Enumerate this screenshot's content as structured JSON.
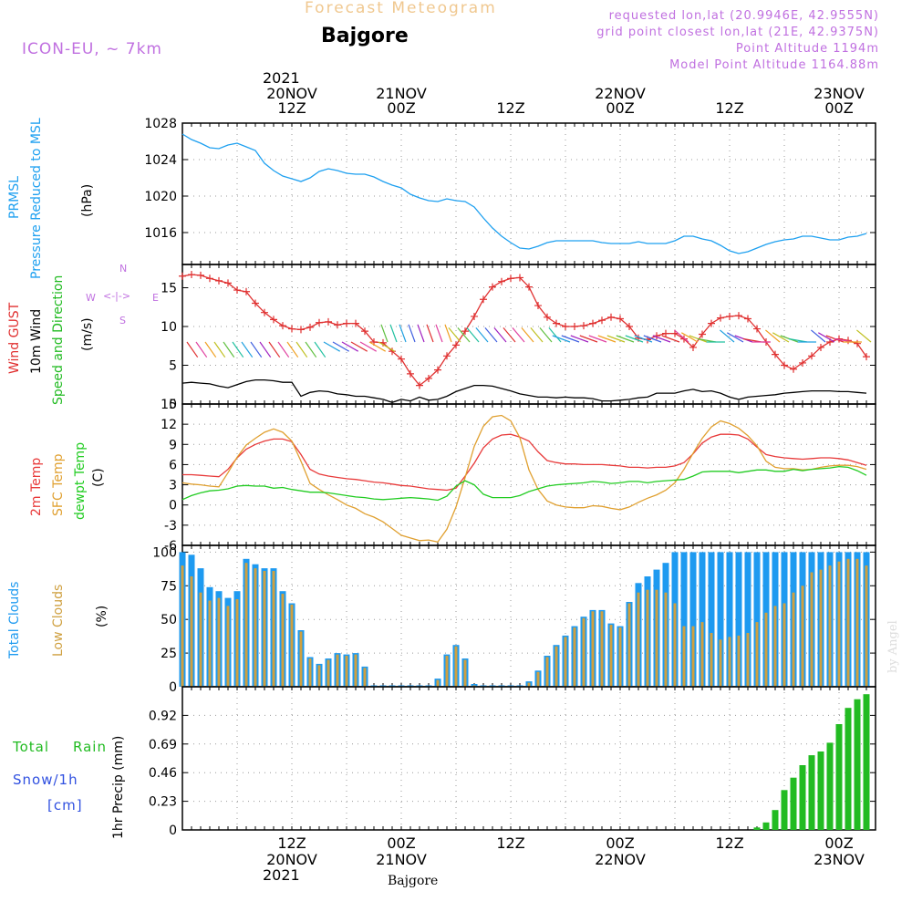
{
  "header": {
    "title": "Forecast Meteogram",
    "station": "Bajgore",
    "model": "ICON-EU, ~ 7km",
    "requested": "requested lon,lat (20.9946E, 42.9555N)",
    "gridpoint": "grid point closest lon,lat (21E, 42.9375N)",
    "altitude": "Point Altitude 1194m",
    "model_altitude": "Model Point Altitude 1164.88m",
    "footer_station": "Bajgore",
    "credit": "by Angel",
    "compass": {
      "n": "N",
      "s": "S",
      "e": "E",
      "w": "W"
    }
  },
  "time_axis": {
    "top_year": "2021",
    "bottom_year": "2021",
    "ticks": [
      {
        "h": 12,
        "hour": "12Z",
        "date": "20NOV"
      },
      {
        "h": 24,
        "hour": "00Z",
        "date": "21NOV"
      },
      {
        "h": 36,
        "hour": "12Z",
        "date": ""
      },
      {
        "h": 48,
        "hour": "00Z",
        "date": "22NOV"
      },
      {
        "h": 60,
        "hour": "12Z",
        "date": ""
      },
      {
        "h": 72,
        "hour": "00Z",
        "date": "23NOV"
      }
    ]
  },
  "panels": {
    "pressure": {
      "label1": "PRMSL",
      "label2": "Pressure Reduced to MSL",
      "unit": "(hPa)",
      "color": "#1ea0f0"
    },
    "wind": {
      "label1": "Wind GUST",
      "label2": "10m Wind",
      "label3": "Speed and Direction",
      "unit": "(m/s)",
      "gust_color": "#e03030",
      "wind_color": "#000000",
      "dir_color": "#22bb22"
    },
    "temp": {
      "label1": "2m Temp",
      "label2": "SFC Temp",
      "label3": "dewpt Temp",
      "unit": "(C)",
      "t2m_color": "#e83a3a",
      "sfc_color": "#e0a030",
      "dew_color": "#22cc22"
    },
    "clouds": {
      "label1": "Total Clouds",
      "label2": "Low Clouds",
      "unit": "(%)",
      "total_color": "#1e9af0",
      "low_color": "#cfa040"
    },
    "precip": {
      "label1": "Total",
      "label1b": "Rain",
      "label2": "Snow/1h",
      "label3": "[cm]",
      "unit": "1hr Precip (mm)",
      "rain_color": "#22bb22",
      "snow_color": "#3050e0"
    }
  },
  "chart_data": [
    {
      "type": "line",
      "title": "PRMSL",
      "ylabel": "(hPa)",
      "ylim": [
        1012.5,
        1028
      ],
      "yticks": [
        1016,
        1020,
        1024,
        1028
      ],
      "grid": true,
      "x": [
        0,
        1,
        2,
        3,
        4,
        5,
        6,
        7,
        8,
        9,
        10,
        11,
        12,
        13,
        14,
        15,
        16,
        17,
        18,
        19,
        20,
        21,
        22,
        23,
        24,
        25,
        26,
        27,
        28,
        29,
        30,
        31,
        32,
        33,
        34,
        35,
        36,
        37,
        38,
        39,
        40,
        41,
        42,
        43,
        44,
        45,
        46,
        47,
        48,
        49,
        50,
        51,
        52,
        53,
        54,
        55,
        56,
        57,
        58,
        59,
        60,
        61,
        62,
        63,
        64,
        65,
        66,
        67,
        68,
        69,
        70,
        71,
        72,
        73,
        74,
        75
      ],
      "series": [
        {
          "name": "PRMSL",
          "values": [
            1026.8,
            1026.2,
            1025.8,
            1025.3,
            1025.2,
            1025.6,
            1025.8,
            1025.4,
            1025.0,
            1023.6,
            1022.8,
            1022.2,
            1021.9,
            1021.6,
            1022.0,
            1022.7,
            1023.0,
            1022.8,
            1022.5,
            1022.4,
            1022.4,
            1022.1,
            1021.6,
            1021.2,
            1020.9,
            1020.2,
            1019.8,
            1019.5,
            1019.4,
            1019.7,
            1019.5,
            1019.4,
            1018.8,
            1017.6,
            1016.5,
            1015.6,
            1014.9,
            1014.3,
            1014.2,
            1014.5,
            1014.9,
            1015.1,
            1015.1,
            1015.1,
            1015.1,
            1015.1,
            1014.9,
            1014.8,
            1014.8,
            1014.8,
            1015.0,
            1014.8,
            1014.8,
            1014.8,
            1015.1,
            1015.6,
            1015.6,
            1015.3,
            1015.1,
            1014.6,
            1014.0,
            1013.7,
            1013.9,
            1014.3,
            1014.7,
            1015.0,
            1015.2,
            1015.3,
            1015.6,
            1015.6,
            1015.4,
            1015.2,
            1015.2,
            1015.5,
            1015.6,
            1015.9
          ]
        }
      ]
    },
    {
      "type": "line",
      "title": "Wind GUST / 10m Wind",
      "ylabel": "(m/s)",
      "ylim": [
        0,
        18
      ],
      "yticks": [
        0,
        5,
        10,
        15
      ],
      "grid": true,
      "x": [
        0,
        1,
        2,
        3,
        4,
        5,
        6,
        7,
        8,
        9,
        10,
        11,
        12,
        13,
        14,
        15,
        16,
        17,
        18,
        19,
        20,
        21,
        22,
        23,
        24,
        25,
        26,
        27,
        28,
        29,
        30,
        31,
        32,
        33,
        34,
        35,
        36,
        37,
        38,
        39,
        40,
        41,
        42,
        43,
        44,
        45,
        46,
        47,
        48,
        49,
        50,
        51,
        52,
        53,
        54,
        55,
        56,
        57,
        58,
        59,
        60,
        61,
        62,
        63,
        64,
        65,
        66,
        67,
        68,
        69,
        70,
        71,
        72,
        73,
        74,
        75
      ],
      "series": [
        {
          "name": "Wind GUST",
          "values": [
            16.5,
            16.7,
            16.6,
            16.2,
            15.9,
            15.6,
            14.7,
            14.5,
            13.0,
            11.8,
            10.9,
            10.1,
            9.7,
            9.6,
            9.9,
            10.5,
            10.6,
            10.2,
            10.4,
            10.4,
            9.4,
            8.0,
            7.9,
            6.8,
            5.8,
            3.9,
            2.4,
            3.3,
            4.4,
            6.2,
            7.6,
            9.4,
            11.3,
            13.5,
            15.1,
            15.8,
            16.2,
            16.3,
            15.1,
            12.7,
            11.2,
            10.4,
            10.0,
            10.0,
            10.1,
            10.4,
            10.8,
            11.2,
            11.0,
            10.0,
            8.5,
            8.3,
            8.8,
            9.1,
            9.1,
            8.4,
            7.3,
            9.0,
            10.4,
            11.1,
            11.3,
            11.4,
            11.0,
            9.7,
            8.0,
            6.4,
            5.0,
            4.5,
            5.3,
            6.2,
            7.3,
            8.0,
            8.4,
            8.2,
            7.8,
            6.1
          ]
        },
        {
          "name": "10m Wind",
          "values": [
            2.7,
            2.8,
            2.7,
            2.6,
            2.3,
            2.1,
            2.5,
            2.9,
            3.1,
            3.1,
            3.0,
            2.8,
            2.8,
            1.0,
            1.5,
            1.7,
            1.6,
            1.3,
            1.2,
            1.0,
            1.0,
            0.8,
            0.6,
            0.2,
            0.6,
            0.4,
            0.9,
            0.5,
            0.6,
            1.0,
            1.6,
            2.0,
            2.4,
            2.4,
            2.3,
            2.0,
            1.7,
            1.3,
            1.1,
            0.9,
            0.9,
            0.8,
            0.9,
            0.8,
            0.8,
            0.7,
            0.4,
            0.4,
            0.5,
            0.6,
            0.8,
            0.9,
            1.4,
            1.4,
            1.4,
            1.7,
            1.9,
            1.6,
            1.7,
            1.4,
            0.9,
            0.6,
            0.9,
            1.0,
            1.1,
            1.2,
            1.4,
            1.5,
            1.6,
            1.7,
            1.7,
            1.7,
            1.6,
            1.6,
            1.5,
            1.4
          ]
        }
      ]
    },
    {
      "type": "line",
      "title": "Temperature",
      "ylabel": "(C)",
      "ylim": [
        -6,
        15
      ],
      "yticks": [
        -6,
        -3,
        0,
        3,
        6,
        9,
        12,
        15
      ],
      "grid": true,
      "x": [
        0,
        1,
        2,
        3,
        4,
        5,
        6,
        7,
        8,
        9,
        10,
        11,
        12,
        13,
        14,
        15,
        16,
        17,
        18,
        19,
        20,
        21,
        22,
        23,
        24,
        25,
        26,
        27,
        28,
        29,
        30,
        31,
        32,
        33,
        34,
        35,
        36,
        37,
        38,
        39,
        40,
        41,
        42,
        43,
        44,
        45,
        46,
        47,
        48,
        49,
        50,
        51,
        52,
        53,
        54,
        55,
        56,
        57,
        58,
        59,
        60,
        61,
        62,
        63,
        64,
        65,
        66,
        67,
        68,
        69,
        70,
        71,
        72,
        73,
        74,
        75
      ],
      "series": [
        {
          "name": "2m Temp",
          "values": [
            4.5,
            4.5,
            4.4,
            4.3,
            4.2,
            5.3,
            7.0,
            8.3,
            9.0,
            9.5,
            9.8,
            9.8,
            9.4,
            7.5,
            5.3,
            4.6,
            4.3,
            4.1,
            3.9,
            3.8,
            3.6,
            3.4,
            3.3,
            3.1,
            2.9,
            2.8,
            2.6,
            2.4,
            2.3,
            2.2,
            2.5,
            4.3,
            6.2,
            8.5,
            9.8,
            10.4,
            10.5,
            10.1,
            9.5,
            7.9,
            6.6,
            6.3,
            6.1,
            6.1,
            6.0,
            6.0,
            6.0,
            5.9,
            5.8,
            5.6,
            5.6,
            5.5,
            5.6,
            5.6,
            5.8,
            6.3,
            7.6,
            9.2,
            10.1,
            10.5,
            10.5,
            10.4,
            9.8,
            8.6,
            7.5,
            7.2,
            7.0,
            6.9,
            6.8,
            6.9,
            7.0,
            7.0,
            6.9,
            6.7,
            6.3,
            5.9
          ]
        },
        {
          "name": "SFC Temp",
          "values": [
            3.3,
            3.1,
            3.0,
            2.8,
            2.7,
            4.8,
            7.1,
            8.9,
            9.9,
            10.8,
            11.3,
            10.8,
            9.5,
            6.5,
            3.2,
            2.3,
            1.5,
            0.8,
            0.0,
            -0.5,
            -1.3,
            -1.8,
            -2.5,
            -3.5,
            -4.5,
            -4.9,
            -5.3,
            -5.2,
            -5.5,
            -3.6,
            -0.3,
            4.1,
            8.7,
            11.7,
            13.1,
            13.3,
            12.5,
            10.0,
            5.2,
            2.3,
            0.6,
            0.0,
            -0.3,
            -0.4,
            -0.4,
            -0.1,
            -0.2,
            -0.5,
            -0.7,
            -0.3,
            0.4,
            1.0,
            1.5,
            2.2,
            3.3,
            5.3,
            7.7,
            9.9,
            11.6,
            12.5,
            12.1,
            11.4,
            10.3,
            8.8,
            6.5,
            5.6,
            5.4,
            5.4,
            5.2,
            5.3,
            5.6,
            5.8,
            5.9,
            5.9,
            5.7,
            5.3
          ]
        },
        {
          "name": "dewpt Temp",
          "values": [
            0.8,
            1.4,
            1.8,
            2.1,
            2.2,
            2.4,
            2.8,
            2.9,
            2.8,
            2.8,
            2.5,
            2.6,
            2.3,
            2.1,
            1.9,
            1.9,
            1.8,
            1.6,
            1.4,
            1.2,
            1.1,
            0.9,
            0.8,
            0.9,
            1.0,
            1.1,
            1.0,
            0.9,
            0.7,
            1.3,
            2.8,
            3.6,
            3.0,
            1.6,
            1.1,
            1.1,
            1.1,
            1.4,
            2.0,
            2.4,
            2.8,
            3.0,
            3.1,
            3.2,
            3.3,
            3.5,
            3.4,
            3.2,
            3.3,
            3.5,
            3.5,
            3.3,
            3.5,
            3.6,
            3.7,
            3.8,
            4.3,
            4.9,
            5.0,
            5.0,
            5.0,
            4.8,
            5.0,
            5.2,
            5.2,
            5.0,
            5.0,
            5.3,
            5.1,
            5.3,
            5.4,
            5.5,
            5.7,
            5.6,
            5.1,
            4.4
          ]
        }
      ]
    },
    {
      "type": "bar",
      "title": "Clouds",
      "ylabel": "(%)",
      "ylim": [
        0,
        105
      ],
      "yticks": [
        0,
        25,
        50,
        75,
        100
      ],
      "grid": true,
      "x": [
        0,
        1,
        2,
        3,
        4,
        5,
        6,
        7,
        8,
        9,
        10,
        11,
        12,
        13,
        14,
        15,
        16,
        17,
        18,
        19,
        20,
        21,
        22,
        23,
        24,
        25,
        26,
        27,
        28,
        29,
        30,
        31,
        32,
        33,
        34,
        35,
        36,
        37,
        38,
        39,
        40,
        41,
        42,
        43,
        44,
        45,
        46,
        47,
        48,
        49,
        50,
        51,
        52,
        53,
        54,
        55,
        56,
        57,
        58,
        59,
        60,
        61,
        62,
        63,
        64,
        65,
        66,
        67,
        68,
        69,
        70,
        71,
        72,
        73,
        74,
        75
      ],
      "series": [
        {
          "name": "Total Clouds",
          "values": [
            100,
            98,
            88,
            74,
            71,
            66,
            71,
            95,
            91,
            88,
            88,
            71,
            62,
            42,
            22,
            17,
            21,
            25,
            24,
            25,
            15,
            1,
            1,
            1,
            1,
            1,
            1,
            1,
            6,
            24,
            31,
            21,
            2,
            1,
            1,
            1,
            1,
            1,
            4,
            12,
            23,
            31,
            38,
            45,
            52,
            57,
            57,
            47,
            45,
            63,
            77,
            82,
            87,
            92,
            100,
            100,
            100,
            100,
            100,
            100,
            100,
            100,
            100,
            100,
            100,
            100,
            100,
            100,
            100,
            100,
            100,
            100,
            100,
            100,
            100,
            100
          ]
        },
        {
          "name": "Low Clouds",
          "values": [
            90,
            82,
            70,
            64,
            66,
            60,
            65,
            92,
            88,
            86,
            86,
            69,
            61,
            41,
            21,
            16,
            20,
            24,
            23,
            24,
            14,
            0,
            0,
            0,
            0,
            0,
            0,
            0,
            5,
            23,
            30,
            20,
            1,
            0,
            0,
            0,
            0,
            0,
            3,
            11,
            22,
            30,
            37,
            44,
            51,
            56,
            56,
            46,
            44,
            62,
            70,
            72,
            72,
            70,
            62,
            45,
            45,
            48,
            40,
            35,
            37,
            38,
            40,
            48,
            55,
            60,
            62,
            70,
            75,
            85,
            87,
            90,
            93,
            95,
            95,
            90
          ]
        }
      ]
    },
    {
      "type": "bar",
      "title": "1hr Precip",
      "ylabel": "1hr Precip (mm)",
      "ylim": [
        0,
        1.15
      ],
      "yticks": [
        0,
        0.23,
        0.46,
        0.69,
        0.92
      ],
      "grid": true,
      "x": [
        63,
        64,
        65,
        66,
        67,
        68,
        69,
        70,
        71,
        72,
        73,
        74,
        75
      ],
      "series": [
        {
          "name": "Total Rain",
          "values": [
            0.02,
            0.06,
            0.16,
            0.32,
            0.42,
            0.52,
            0.6,
            0.63,
            0.7,
            0.85,
            0.98,
            1.05,
            1.09
          ]
        }
      ]
    }
  ]
}
